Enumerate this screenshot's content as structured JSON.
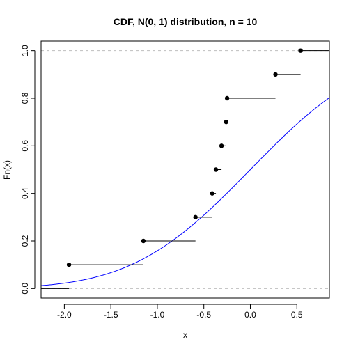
{
  "chart_data": {
    "type": "line",
    "title": "CDF, N(0, 1) distribution, n = 10",
    "xlabel": "x",
    "ylabel": "Fn(x)",
    "xlim": [
      -2.25,
      0.85
    ],
    "ylim": [
      -0.04,
      1.04
    ],
    "x_ticks": [
      -2.0,
      -1.5,
      -1.0,
      -0.5,
      0.0,
      0.5
    ],
    "x_tick_labels": [
      "-2.0",
      "-1.5",
      "-1.0",
      "-0.5",
      "0.0",
      "0.5"
    ],
    "y_ticks": [
      0.0,
      0.2,
      0.4,
      0.6,
      0.8,
      1.0
    ],
    "y_tick_labels": [
      "0.0",
      "0.2",
      "0.4",
      "0.6",
      "0.8",
      "1.0"
    ],
    "reference_lines_y": [
      0,
      1
    ],
    "reference_line_color": "#bebebe",
    "ecdf_color": "#000000",
    "normal_cdf_color": "#0000ff",
    "series": [
      {
        "type": "step",
        "x": [
          -1.95,
          -1.15,
          -0.59,
          -0.41,
          -0.37,
          -0.31,
          -0.26,
          -0.25,
          0.27,
          0.54
        ],
        "y": [
          0.1,
          0.2,
          0.3,
          0.4,
          0.5,
          0.6,
          0.7,
          0.8,
          0.9,
          1.0
        ]
      },
      {
        "type": "curve",
        "function": "standard normal CDF",
        "mean": 0,
        "sd": 1
      }
    ],
    "grid": false,
    "legend": "none"
  }
}
